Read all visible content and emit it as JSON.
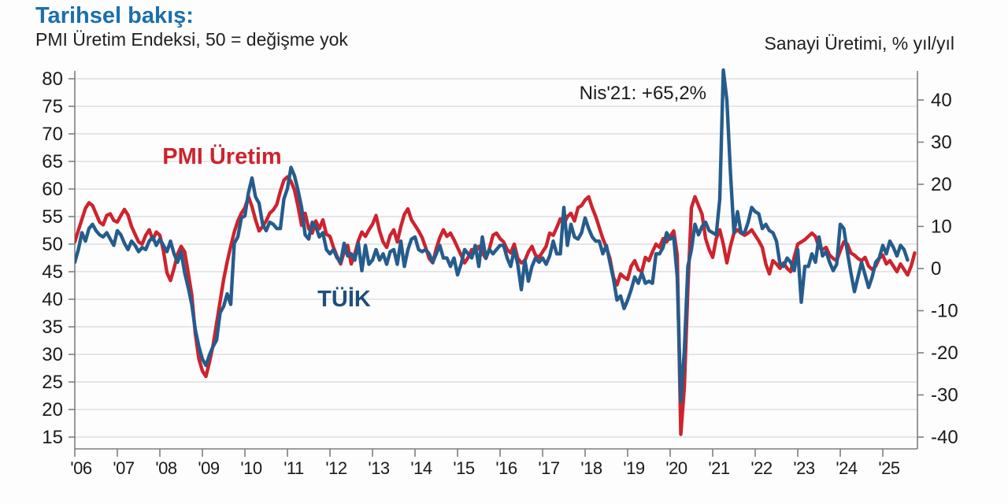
{
  "header": {
    "title": "Tarihsel bakış:",
    "subtitle": "PMI Üretim Endeksi, 50 = değişme yok",
    "right_axis_title": "Sanayi Üretimi, % yıl/yıl"
  },
  "annotation": {
    "text": "Nis'21: +65,2%"
  },
  "series_labels": {
    "pmi": "PMI Üretim",
    "tuik": "TÜİK"
  },
  "colors": {
    "title_blue": "#1b6fae",
    "pmi_red": "#ce232e",
    "tuik_blue": "#255c8c",
    "tuik_label": "#1f4e7c",
    "grid": "#d8d8d8",
    "axis": "#7f7f7f",
    "text": "#1a1a1a"
  },
  "chart_data": {
    "type": "line",
    "title": "Tarihsel bakış:",
    "subtitle": "PMI Üretim Endeksi, 50 = değişme yok",
    "left_axis": {
      "title": "PMI Üretim Endeksi (50 = değişme yok)",
      "min": 15,
      "max": 80,
      "step": 5,
      "ticks": [
        80,
        75,
        70,
        65,
        60,
        55,
        50,
        45,
        40,
        35,
        30,
        25,
        20,
        15
      ]
    },
    "right_axis": {
      "title": "Sanayi Üretimi, % yıl/yıl",
      "min": -40,
      "max": 40,
      "step": 10,
      "ticks": [
        40,
        30,
        20,
        10,
        0,
        -10,
        -20,
        -30,
        -40
      ]
    },
    "x_ticks": [
      "'06",
      "'07",
      "'08",
      "'09",
      "'10",
      "'11",
      "'12",
      "'13",
      "'14",
      "'15",
      "'16",
      "'17",
      "'18",
      "'19",
      "'20",
      "'21",
      "'22",
      "'23",
      "'24",
      "'25"
    ],
    "grid": true,
    "legend_position": "inline-labels",
    "annotation": {
      "text": "Nis'21: +65,2%",
      "t": 2021.29,
      "value_pct": 65.2
    },
    "series": [
      {
        "name": "PMI Üretim",
        "axis": "left",
        "color": "#ce232e",
        "start_year": 2006,
        "interval_months": 1,
        "values": [
          50.4,
          52.5,
          54.5,
          56.5,
          57.5,
          57.0,
          55.5,
          54.0,
          53.5,
          55.2,
          55.5,
          54.3,
          54.0,
          55.2,
          56.3,
          55.3,
          53.2,
          51.8,
          50.4,
          50.0,
          51.6,
          52.6,
          50.8,
          52.2,
          51.6,
          48.8,
          44.8,
          43.4,
          45.6,
          48.2,
          49.6,
          48.6,
          44.8,
          40.8,
          33.8,
          29.2,
          27.0,
          26.0,
          28.6,
          31.6,
          35.6,
          39.6,
          43.6,
          46.8,
          49.6,
          52.2,
          54.2,
          55.6,
          56.6,
          58.6,
          56.8,
          54.4,
          52.4,
          53.2,
          54.2,
          55.6,
          56.2,
          57.2,
          59.6,
          61.6,
          62.2,
          61.4,
          59.8,
          56.8,
          53.4,
          55.6,
          52.8,
          52.0,
          54.2,
          52.8,
          54.4,
          51.8,
          51.4,
          49.4,
          47.8,
          46.4,
          48.6,
          49.8,
          46.4,
          48.2,
          50.6,
          52.2,
          51.4,
          52.6,
          53.6,
          55.2,
          52.4,
          50.4,
          49.4,
          51.6,
          52.6,
          50.4,
          53.2,
          55.4,
          56.4,
          54.4,
          53.4,
          52.4,
          51.2,
          49.4,
          47.4,
          46.6,
          49.2,
          51.2,
          52.6,
          51.4,
          52.0,
          50.8,
          49.4,
          48.0,
          46.6,
          47.6,
          49.0,
          48.4,
          49.6,
          48.4,
          47.4,
          49.2,
          51.6,
          52.0,
          51.0,
          50.4,
          49.0,
          48.4,
          50.0,
          47.4,
          46.6,
          47.0,
          48.6,
          49.6,
          48.0,
          47.6,
          48.6,
          49.6,
          52.0,
          51.6,
          53.0,
          54.6,
          53.6,
          55.0,
          55.6,
          54.2,
          56.6,
          57.0,
          58.0,
          58.6,
          56.6,
          55.0,
          53.0,
          51.0,
          49.4,
          47.4,
          44.0,
          42.6,
          44.6,
          44.0,
          43.6,
          46.0,
          47.0,
          45.4,
          45.0,
          47.6,
          47.0,
          48.6,
          50.0,
          49.4,
          51.0,
          50.4,
          51.4,
          52.4,
          48.0,
          15.5,
          24.0,
          42.0,
          56.6,
          58.6,
          57.0,
          55.4,
          51.0,
          49.0,
          47.6,
          51.0,
          52.6,
          50.0,
          46.6,
          49.6,
          52.0,
          52.6,
          52.0,
          51.6,
          52.0,
          52.6,
          51.6,
          50.6,
          49.4,
          46.4,
          44.6,
          47.0,
          46.4,
          45.6,
          46.6,
          45.6,
          45.0,
          47.6,
          50.0,
          50.4,
          50.8,
          51.4,
          52.0,
          51.4,
          49.4,
          49.0,
          49.4,
          48.0,
          47.4,
          47.0,
          48.8,
          50.4,
          50.0,
          48.4,
          48.0,
          47.4,
          47.0,
          47.6,
          46.0,
          45.4,
          46.0,
          47.4,
          48.0,
          46.4,
          47.0,
          46.0,
          45.0,
          46.4,
          45.4,
          44.4,
          46.0,
          48.4
        ]
      },
      {
        "name": "TÜİK",
        "axis": "right",
        "color": "#255c8c",
        "start_year": 2006,
        "interval_months": 1,
        "values": [
          1.5,
          4.5,
          8.5,
          6.5,
          9.5,
          10.5,
          9.0,
          8.0,
          7.5,
          8.5,
          7.0,
          5.5,
          9.0,
          8.0,
          6.0,
          4.5,
          6.5,
          5.5,
          4.0,
          5.0,
          4.5,
          6.5,
          7.5,
          5.5,
          7.0,
          5.5,
          4.0,
          6.5,
          3.5,
          1.5,
          4.0,
          -1.0,
          -4.5,
          -8.5,
          -14.5,
          -18.5,
          -21.5,
          -23.0,
          -20.5,
          -18.5,
          -17.0,
          -10.5,
          -9.0,
          -6.0,
          -8.5,
          6.0,
          7.5,
          12.0,
          12.5,
          18.0,
          21.5,
          17.0,
          15.5,
          10.5,
          9.0,
          11.0,
          10.5,
          9.5,
          9.5,
          16.5,
          19.0,
          24.0,
          22.0,
          18.5,
          14.5,
          8.0,
          7.0,
          11.0,
          10.0,
          7.5,
          8.5,
          4.5,
          3.5,
          4.5,
          2.5,
          1.5,
          6.0,
          3.0,
          3.5,
          2.0,
          6.0,
          -0.5,
          5.5,
          1.0,
          2.0,
          4.5,
          2.0,
          3.5,
          1.0,
          4.0,
          4.5,
          1.0,
          6.5,
          0.5,
          4.5,
          7.0,
          7.5,
          4.5,
          4.0,
          4.5,
          3.5,
          1.5,
          3.5,
          5.5,
          2.5,
          2.5,
          0.5,
          2.5,
          -1.5,
          1.0,
          4.5,
          3.5,
          2.5,
          5.5,
          0.5,
          7.5,
          2.5,
          4.5,
          3.5,
          4.5,
          5.5,
          5.5,
          2.5,
          0.5,
          4.5,
          1.0,
          -5.0,
          2.0,
          -3.0,
          0.5,
          2.5,
          1.5,
          2.5,
          1.0,
          3.0,
          6.5,
          3.5,
          3.5,
          14.5,
          5.5,
          10.5,
          7.5,
          7.0,
          8.5,
          12.0,
          9.5,
          7.5,
          6.5,
          6.5,
          3.5,
          5.5,
          1.5,
          -2.5,
          -7.5,
          -6.5,
          -9.5,
          -7.5,
          -5.0,
          -2.0,
          -3.5,
          -1.0,
          -3.5,
          -3.0,
          -3.5,
          3.5,
          3.5,
          5.0,
          8.5,
          7.0,
          7.5,
          -2.0,
          -31.5,
          -19.5,
          0.5,
          4.5,
          10.5,
          8.0,
          10.0,
          11.0,
          9.0,
          8.5,
          8.0,
          16.5,
          65.2,
          40.0,
          23.0,
          8.5,
          13.5,
          8.5,
          8.5,
          11.0,
          14.5,
          13.5,
          13.0,
          9.5,
          10.5,
          9.0,
          8.5,
          6.5,
          1.0,
          0.5,
          2.5,
          1.5,
          -0.5,
          4.5,
          -8.0,
          0.5,
          0.5,
          3.5,
          1.5,
          7.5,
          3.0,
          4.0,
          1.5,
          -0.5,
          1.0,
          10.5,
          9.5,
          4.0,
          -1.0,
          -5.5,
          -2.0,
          1.5,
          -1.5,
          -4.5,
          -2.0,
          1.5,
          2.5,
          5.5,
          3.5,
          6.5,
          5.0,
          3.0,
          5.5,
          4.5,
          2.0
        ]
      }
    ]
  }
}
